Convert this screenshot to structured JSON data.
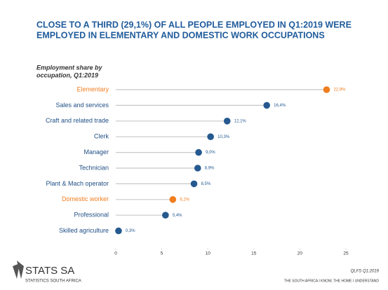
{
  "chart_data": {
    "type": "lollipop",
    "title": [
      "CLOSE TO  A THIRD (29,1%) OF ALL PEOPLE EMPLOYED IN Q1:2019 WERE",
      "EMPLOYED IN ELEMENTARY AND DOMESTIC WORK OCCUPATIONS"
    ],
    "subtitle": [
      "Employment share by",
      "occupation, Q1:2019"
    ],
    "categories": [
      "Elementary",
      "Sales and services",
      "Craft and related trade",
      "Clerk",
      "Manager",
      "Technician",
      "Plant & Mach operator",
      "Domestic worker",
      "Professional",
      "Skilled agriculture"
    ],
    "values": [
      22.9,
      16.4,
      12.1,
      10.3,
      9.0,
      8.9,
      8.5,
      6.2,
      5.4,
      0.3
    ],
    "value_labels": [
      "22,9%",
      "16,4%",
      "12,1%",
      "10,3%",
      "9,0%",
      "8,9%",
      "8,5%",
      "6,2%",
      "5,4%",
      "0,3%"
    ],
    "colors": [
      "#f07d1e",
      "#25598f",
      "#25598f",
      "#25598f",
      "#25598f",
      "#25598f",
      "#25598f",
      "#f07d1e",
      "#25598f",
      "#25598f"
    ],
    "xlim": [
      0,
      25
    ],
    "xticks": [
      0,
      5,
      10,
      15,
      20,
      25
    ]
  },
  "footer": {
    "logo": "STATS SA",
    "logo_sub": "STATISTICS SOUTH AFRICA",
    "source": "QLFS Q1:2019",
    "slogan": "THE SOUTH AFRICA I KNOW, THE HOME I UNDERSTAND"
  }
}
